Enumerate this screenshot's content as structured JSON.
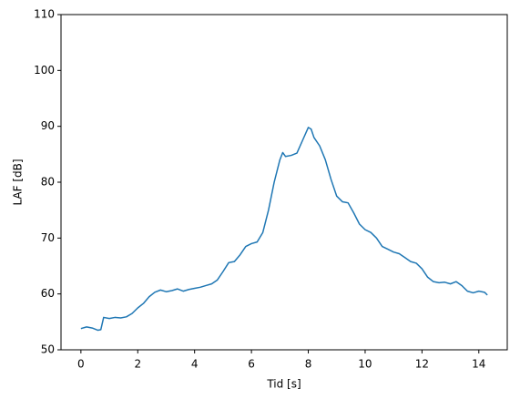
{
  "chart_data": {
    "type": "line",
    "x_label": "Tid [s]",
    "y_label": "LAF [dB]",
    "x": [
      0,
      0.2,
      0.4,
      0.6,
      0.7,
      0.8,
      1.0,
      1.2,
      1.4,
      1.6,
      1.8,
      2.0,
      2.2,
      2.4,
      2.6,
      2.8,
      3.0,
      3.2,
      3.4,
      3.6,
      3.8,
      4.0,
      4.2,
      4.4,
      4.6,
      4.8,
      5.0,
      5.2,
      5.4,
      5.6,
      5.8,
      6.0,
      6.2,
      6.4,
      6.6,
      6.8,
      7.0,
      7.1,
      7.2,
      7.4,
      7.6,
      7.8,
      8.0,
      8.1,
      8.2,
      8.4,
      8.6,
      8.8,
      9.0,
      9.2,
      9.4,
      9.6,
      9.8,
      10.0,
      10.2,
      10.4,
      10.6,
      10.8,
      11.0,
      11.2,
      11.4,
      11.6,
      11.8,
      12.0,
      12.2,
      12.4,
      12.6,
      12.8,
      13.0,
      13.2,
      13.4,
      13.6,
      13.8,
      14.0,
      14.2,
      14.3
    ],
    "series": [
      {
        "name": "LAF",
        "color": "#1f77b4",
        "values": [
          53.8,
          54.1,
          53.9,
          53.5,
          53.6,
          55.8,
          55.6,
          55.8,
          55.7,
          55.9,
          56.5,
          57.5,
          58.3,
          59.5,
          60.3,
          60.7,
          60.4,
          60.6,
          60.9,
          60.5,
          60.8,
          61.0,
          61.2,
          61.5,
          61.8,
          62.5,
          64.0,
          65.6,
          65.8,
          67.0,
          68.5,
          69.0,
          69.3,
          71.0,
          75.0,
          80.0,
          84.0,
          85.3,
          84.6,
          84.8,
          85.2,
          87.5,
          89.8,
          89.5,
          88.0,
          86.5,
          84.0,
          80.5,
          77.5,
          76.5,
          76.3,
          74.5,
          72.5,
          71.5,
          71.0,
          70.0,
          68.5,
          68.0,
          67.5,
          67.2,
          66.5,
          65.8,
          65.5,
          64.5,
          63.0,
          62.2,
          62.0,
          62.1,
          61.8,
          62.2,
          61.5,
          60.5,
          60.2,
          60.5,
          60.3,
          59.8
        ]
      }
    ],
    "xlim": [
      -0.7,
      15.0
    ],
    "xticks": [
      0,
      2,
      4,
      6,
      8,
      10,
      12,
      14
    ],
    "ylim": [
      50,
      110
    ],
    "yticks": [
      50,
      60,
      70,
      80,
      90,
      100,
      110
    ]
  }
}
